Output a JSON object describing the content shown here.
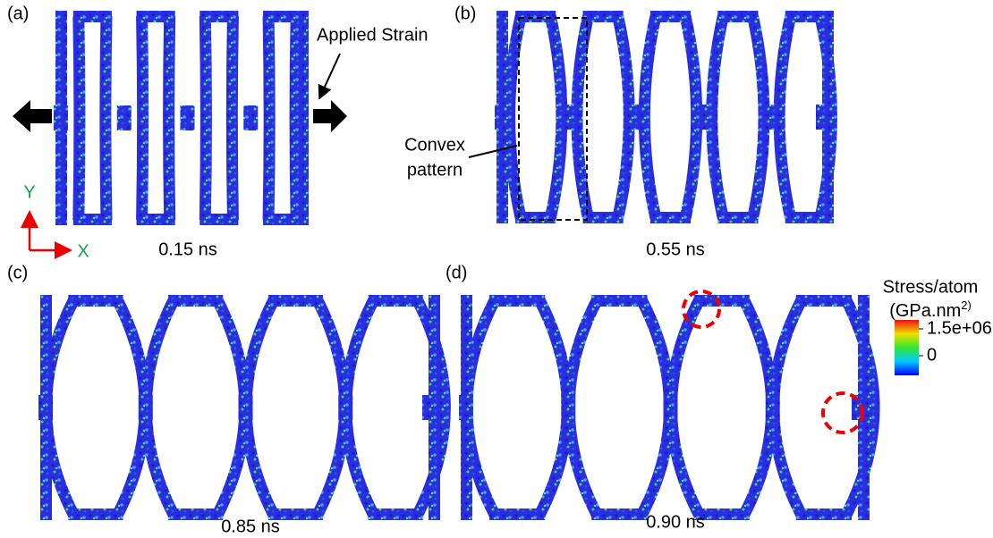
{
  "panels": [
    {
      "label": "(a)",
      "time": "0.15 ns"
    },
    {
      "label": "(b)",
      "time": "0.55 ns"
    },
    {
      "label": "(c)",
      "time": "0.85 ns"
    },
    {
      "label": "(d)",
      "time": "0.90 ns"
    }
  ],
  "annotations": {
    "applied_strain": "Applied Strain",
    "convex_pattern": [
      "Convex",
      "pattern"
    ]
  },
  "axes": {
    "y": "Y",
    "x": "X"
  },
  "colorbar": {
    "title": "Stress/atom",
    "unit": "(GPa.nm",
    "unit_sup": "2)",
    "ticks": [
      {
        "value": 1500000,
        "label": "1.5e+06"
      },
      0
    ]
  }
}
